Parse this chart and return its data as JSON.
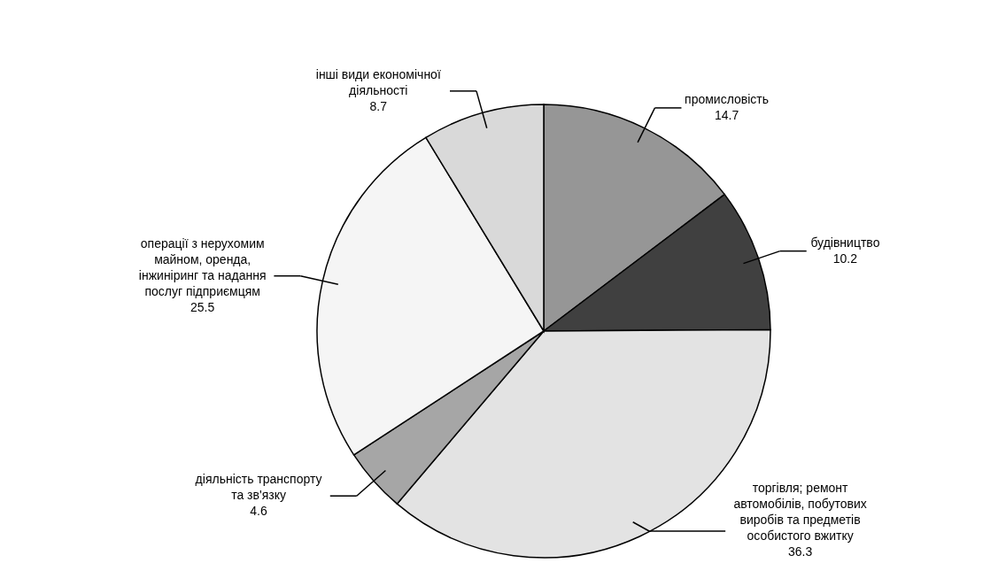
{
  "chart_data": {
    "type": "pie",
    "categories": [
      "промисловість",
      "будівництво",
      "торгівля; ремонт автомобілів, побутових виробів та предметів особистого вжитку",
      "діяльність транспорту та зв'язку",
      "операції з нерухомим майном, оренда, інжиніринг та надання послуг підприємцям",
      "інші види економічної діяльності"
    ],
    "values": [
      14.7,
      10.2,
      36.3,
      4.6,
      25.5,
      8.7
    ],
    "colors": [
      "#969696",
      "#404040",
      "#e3e3e3",
      "#a6a6a6",
      "#f5f5f5",
      "#d9d9d9"
    ],
    "data_labels": true,
    "legend": false
  }
}
